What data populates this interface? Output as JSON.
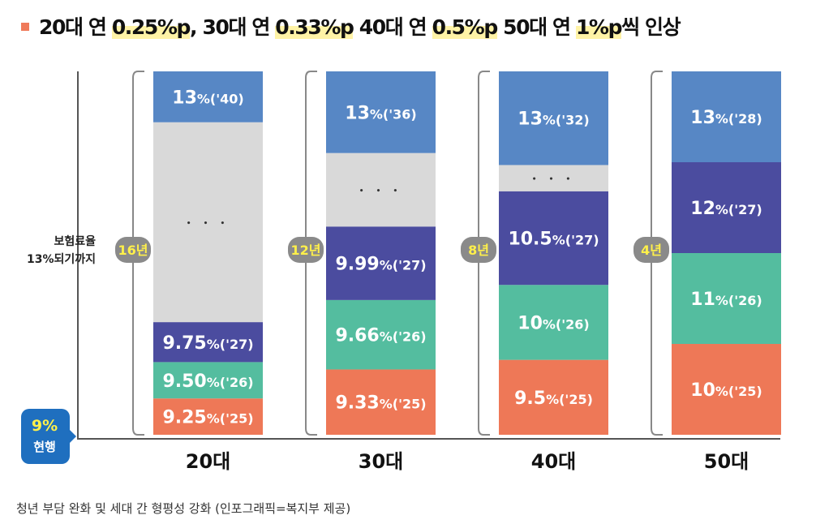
{
  "title": {
    "segments": [
      {
        "text": "20대 연 ",
        "highlight": false
      },
      {
        "text": "0.25%p",
        "highlight": true
      },
      {
        "text": ", 30대 연 ",
        "highlight": false
      },
      {
        "text": "0.33%p",
        "highlight": true
      },
      {
        "text": " 40대 연 ",
        "highlight": false
      },
      {
        "text": "0.5%p",
        "highlight": true
      },
      {
        "text": " 50대 연 ",
        "highlight": false
      },
      {
        "text": "1%p",
        "highlight": true
      },
      {
        "text": "씩 인상",
        "highlight": false
      }
    ]
  },
  "chart_data": {
    "type": "bar",
    "subtype": "stacked-steps",
    "title": "20대 연 0.25%p, 30대 연 0.33%p 40대 연 0.5%p 50대 연 1%p씩 인상",
    "ylabel": "보험료율 13%되기까지",
    "baseline_label": {
      "value": "9%",
      "caption": "현행"
    },
    "categories": [
      "20대",
      "30대",
      "40대",
      "50대"
    ],
    "groups": [
      {
        "category": "20대",
        "years_label": "16년",
        "annual_increase": "0.25%p",
        "segments": [
          {
            "label": "9.25%",
            "year": "('25)",
            "rate": 9.25,
            "kind": "y1"
          },
          {
            "label": "9.50%",
            "year": "('26)",
            "rate": 9.5,
            "kind": "y2"
          },
          {
            "label": "9.75%",
            "year": "('27)",
            "rate": 9.75,
            "kind": "y3"
          },
          {
            "label": "...",
            "year": "",
            "rate": null,
            "kind": "gap"
          },
          {
            "label": "13%",
            "year": "('40)",
            "rate": 13,
            "kind": "target"
          }
        ]
      },
      {
        "category": "30대",
        "years_label": "12년",
        "annual_increase": "0.33%p",
        "segments": [
          {
            "label": "9.33%",
            "year": "('25)",
            "rate": 9.33,
            "kind": "y1"
          },
          {
            "label": "9.66%",
            "year": "('26)",
            "rate": 9.66,
            "kind": "y2"
          },
          {
            "label": "9.99%",
            "year": "('27)",
            "rate": 9.99,
            "kind": "y3"
          },
          {
            "label": "...",
            "year": "",
            "rate": null,
            "kind": "gap"
          },
          {
            "label": "13%",
            "year": "('36)",
            "rate": 13,
            "kind": "target"
          }
        ]
      },
      {
        "category": "40대",
        "years_label": "8년",
        "annual_increase": "0.5%p",
        "segments": [
          {
            "label": "9.5%",
            "year": "('25)",
            "rate": 9.5,
            "kind": "y1"
          },
          {
            "label": "10%",
            "year": "('26)",
            "rate": 10,
            "kind": "y2"
          },
          {
            "label": "10.5%",
            "year": "('27)",
            "rate": 10.5,
            "kind": "y3"
          },
          {
            "label": "...",
            "year": "",
            "rate": null,
            "kind": "gap"
          },
          {
            "label": "13%",
            "year": "('32)",
            "rate": 13,
            "kind": "target"
          }
        ]
      },
      {
        "category": "50대",
        "years_label": "4년",
        "annual_increase": "1%p",
        "segments": [
          {
            "label": "10%",
            "year": "('25)",
            "rate": 10,
            "kind": "y1"
          },
          {
            "label": "11%",
            "year": "('26)",
            "rate": 11,
            "kind": "y2"
          },
          {
            "label": "12%",
            "year": "('27)",
            "rate": 12,
            "kind": "y3"
          },
          {
            "label": "13%",
            "year": "('28)",
            "rate": 13,
            "kind": "target"
          }
        ]
      }
    ],
    "colors": {
      "y1": "#ee7857",
      "y2": "#54bd9f",
      "y3": "#4b4c9f",
      "gap": "#d9d9d9",
      "target": "#5787c5",
      "badge": "#8a8a8a",
      "badge_text": "#fff04a",
      "baseline_badge": "#1f6fbf",
      "bracket": "#888888",
      "axis": "#555555"
    }
  },
  "footer": "청년 부담 완화 및 세대 간 형평성 강화 (인포그래픽=복지부 제공)"
}
